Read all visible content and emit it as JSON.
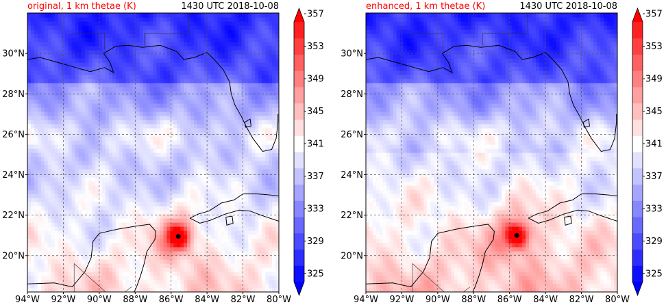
{
  "chart_data": [
    {
      "type": "heatmap",
      "title": "original, 1 km thetae (K)",
      "time_label": "1430 UTC 2018-10-08",
      "xlim": [
        -94,
        -80
      ],
      "ylim": [
        18.2,
        32.0
      ],
      "x_ticks": [
        -94,
        -92,
        -90,
        -88,
        -86,
        -84,
        -82,
        -80
      ],
      "x_tick_labels": [
        "94°W",
        "92°W",
        "90°W",
        "88°W",
        "86°W",
        "84°W",
        "82°W",
        "80°W"
      ],
      "y_ticks": [
        20,
        22,
        24,
        26,
        28,
        30
      ],
      "y_tick_labels": [
        "20°N",
        "22°N",
        "24°N",
        "26°N",
        "28°N",
        "30°N"
      ],
      "grid": true,
      "colorbar": {
        "ticks": [
          325,
          329,
          333,
          337,
          341,
          345,
          349,
          353,
          357
        ],
        "min": 325,
        "max": 357,
        "step": 2,
        "extend": "both"
      },
      "storm_center": {
        "lon": -85.6,
        "lat": 20.95
      }
    },
    {
      "type": "heatmap",
      "title": "enhanced, 1 km thetae (K)",
      "time_label": "1430 UTC 2018-10-08",
      "xlim": [
        -94,
        -80
      ],
      "ylim": [
        18.2,
        32.0
      ],
      "x_ticks": [
        -94,
        -92,
        -90,
        -88,
        -86,
        -84,
        -82,
        -80
      ],
      "x_tick_labels": [
        "94°W",
        "92°W",
        "90°W",
        "88°W",
        "86°W",
        "84°W",
        "82°W",
        "80°W"
      ],
      "y_ticks": [
        20,
        22,
        24,
        26,
        28,
        30
      ],
      "y_tick_labels": [
        "20°N",
        "22°N",
        "24°N",
        "26°N",
        "28°N",
        "30°N"
      ],
      "grid": true,
      "colorbar": {
        "ticks": [
          325,
          329,
          333,
          337,
          341,
          345,
          349,
          353,
          357
        ],
        "min": 325,
        "max": 357,
        "step": 2,
        "extend": "both"
      },
      "storm_center": {
        "lon": -85.6,
        "lat": 21.0
      }
    }
  ],
  "colors": {
    "title_red": "#ff0000",
    "axis": "#000000",
    "grid": "#555555",
    "coast": "#000000"
  }
}
